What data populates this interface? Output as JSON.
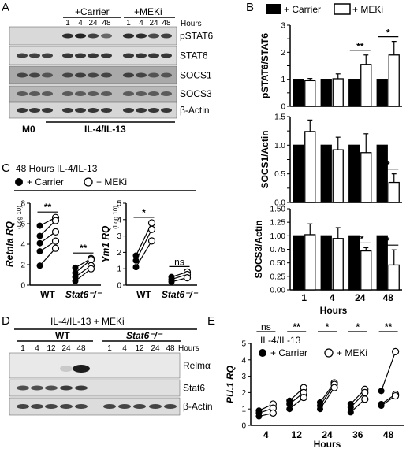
{
  "panels": {
    "A": {
      "letter": "A",
      "group_carrier": "+Carrier",
      "group_meki": "+MEKi",
      "lane_labels": [
        "1",
        "4",
        "24",
        "48",
        "1",
        "4",
        "24",
        "48"
      ],
      "hours_label": "Hours",
      "bands": [
        "pSTAT6",
        "STAT6",
        "SOCS1",
        "SOCS3",
        "β-Actin"
      ],
      "bottom_left": "M0",
      "bottom_right": "IL-4/IL-13"
    },
    "B": {
      "letter": "B",
      "legend_carrier": "+ Carrier",
      "legend_meki": "+ MEKi",
      "xlabel": "Hours",
      "categories": [
        "1",
        "4",
        "24",
        "48"
      ]
    },
    "C": {
      "letter": "C",
      "title": "48 Hours IL-4/IL-13",
      "legend_carrier": "+ Carrier",
      "legend_meki": "+ MEKi",
      "groups": [
        "WT",
        "Stat6⁻/⁻"
      ]
    },
    "D": {
      "letter": "D",
      "title": "IL-4/IL-13 + MEKi",
      "group_wt": "WT",
      "group_ko": "Stat6⁻/⁻",
      "lane_labels": [
        "1",
        "4",
        "12",
        "24",
        "48",
        "1",
        "4",
        "12",
        "24",
        "48"
      ],
      "hours_label": "Hours",
      "bands": [
        "Relmα",
        "Stat6",
        "β-Actin"
      ]
    },
    "E": {
      "letter": "E",
      "inner_title": "IL-4/IL-13",
      "legend_carrier": "+ Carrier",
      "legend_meki": "+ MEKi"
    }
  },
  "chart_data": [
    {
      "id": "B1",
      "type": "bar",
      "ylabel": "pSTAT6/STAT6",
      "categories": [
        "1",
        "4",
        "24",
        "48"
      ],
      "series": [
        {
          "name": "+ Carrier",
          "values": [
            1,
            1,
            1,
            1
          ],
          "errors": [
            0,
            0,
            0,
            0
          ]
        },
        {
          "name": "+ MEKi",
          "values": [
            0.95,
            1.02,
            1.55,
            1.9
          ],
          "errors": [
            0.08,
            0.18,
            0.35,
            0.5
          ]
        }
      ],
      "ylim": [
        0,
        3
      ],
      "yticks": [
        0,
        0.5,
        1,
        1.5,
        2,
        2.5,
        3
      ],
      "ytick_labels": [
        "0",
        "",
        "1",
        "",
        "2",
        "",
        "3"
      ],
      "significance": [
        {
          "category": "24",
          "label": "**"
        },
        {
          "category": "48",
          "label": "*"
        }
      ]
    },
    {
      "id": "B2",
      "type": "bar",
      "ylabel": "SOCS1/Actin",
      "categories": [
        "1",
        "4",
        "24",
        "48"
      ],
      "series": [
        {
          "name": "+ Carrier",
          "values": [
            1,
            1,
            1,
            1
          ],
          "errors": [
            0,
            0,
            0,
            0
          ]
        },
        {
          "name": "+ MEKi",
          "values": [
            1.24,
            0.92,
            0.87,
            0.35
          ],
          "errors": [
            0.2,
            0.22,
            0.33,
            0.15
          ]
        }
      ],
      "ylim": [
        0,
        1.5
      ],
      "yticks": [
        0,
        0.25,
        0.5,
        0.75,
        1,
        1.25,
        1.5
      ],
      "ytick_labels": [
        "0.0",
        "",
        "0.5",
        "",
        "1.0",
        "",
        "1.5"
      ],
      "significance": [
        {
          "category": "48",
          "label": "*"
        }
      ]
    },
    {
      "id": "B3",
      "type": "bar",
      "ylabel": "SOCS3/Actin",
      "categories": [
        "1",
        "4",
        "24",
        "48"
      ],
      "series": [
        {
          "name": "+ Carrier",
          "values": [
            1,
            1,
            1,
            1
          ],
          "errors": [
            0,
            0,
            0,
            0
          ]
        },
        {
          "name": "+ MEKi",
          "values": [
            1.02,
            0.95,
            0.72,
            0.46
          ],
          "errors": [
            0.2,
            0.2,
            0.06,
            0.28
          ]
        }
      ],
      "ylim": [
        0,
        1.5
      ],
      "yticks": [
        0,
        0.25,
        0.5,
        0.75,
        1,
        1.25,
        1.5
      ],
      "ytick_labels": [
        "0.00",
        "0.25",
        "0.50",
        "0.75",
        "1.00",
        "1.25",
        "1.50"
      ],
      "significance": [
        {
          "category": "24",
          "label": "**"
        },
        {
          "category": "48",
          "label": "*"
        }
      ]
    },
    {
      "id": "C1",
      "type": "scatter",
      "ylabel": "Retnla RQ",
      "ylabel_note": "(Log 10)",
      "categories": [
        "WT",
        "Stat6⁻/⁻"
      ],
      "ylim": [
        0,
        8
      ],
      "yticks": [
        0,
        2,
        4,
        6,
        8
      ],
      "pairs": [
        {
          "category": "WT",
          "carrier": [
            5.8,
            4.8,
            4.1,
            3.3,
            1.9
          ],
          "meki": [
            6.6,
            6.3,
            5.2,
            4.3,
            3.6
          ]
        },
        {
          "category": "Stat6⁻/⁻",
          "carrier": [
            1.7,
            1.2,
            0.8,
            0.4
          ],
          "meki": [
            2.6,
            2.5,
            1.9,
            1.6
          ]
        }
      ],
      "significance": [
        {
          "category": "WT",
          "label": "**"
        },
        {
          "category": "Stat6⁻/⁻",
          "label": "**"
        }
      ]
    },
    {
      "id": "C2",
      "type": "scatter",
      "ylabel": "Ym1 RQ",
      "ylabel_note": "(Log 10)",
      "categories": [
        "WT",
        "Stat6⁻/⁻"
      ],
      "ylim": [
        0,
        5
      ],
      "yticks": [
        0,
        1,
        2,
        3,
        4,
        5
      ],
      "pairs": [
        {
          "category": "WT",
          "carrier": [
            1.8,
            1.5,
            1.1
          ],
          "meki": [
            3.8,
            3.4,
            2.7
          ]
        },
        {
          "category": "Stat6⁻/⁻",
          "carrier": [
            0.5,
            0.35,
            0.2
          ],
          "meki": [
            0.8,
            0.65,
            0.45
          ]
        }
      ],
      "significance": [
        {
          "category": "WT",
          "label": "*"
        },
        {
          "category": "Stat6⁻/⁻",
          "label": "ns"
        }
      ]
    },
    {
      "id": "E",
      "type": "scatter",
      "ylabel": "PU.1 RQ",
      "xlabel": "Hours",
      "categories": [
        "4",
        "12",
        "24",
        "36",
        "48"
      ],
      "ylim": [
        0,
        5
      ],
      "yticks": [
        0,
        1,
        2,
        3,
        4,
        5
      ],
      "pairs": [
        {
          "category": "4",
          "carrier": [
            0.9,
            0.75,
            0.55
          ],
          "meki": [
            1.3,
            1.05,
            0.75
          ]
        },
        {
          "category": "12",
          "carrier": [
            1.5,
            1.3,
            1.0
          ],
          "meki": [
            2.3,
            2.0,
            1.7
          ]
        },
        {
          "category": "24",
          "carrier": [
            1.4,
            1.2,
            1.0
          ],
          "meki": [
            2.6,
            2.5,
            2.3
          ]
        },
        {
          "category": "36",
          "carrier": [
            1.3,
            1.1,
            0.8
          ],
          "meki": [
            2.2,
            2.0,
            1.6
          ]
        },
        {
          "category": "48",
          "carrier": [
            2.1,
            1.3,
            1.2
          ],
          "meki": [
            4.5,
            1.9,
            1.8
          ]
        }
      ],
      "significance": [
        {
          "category": "4",
          "label": "ns"
        },
        {
          "category": "12",
          "label": "**"
        },
        {
          "category": "24",
          "label": "*"
        },
        {
          "category": "36",
          "label": "*"
        },
        {
          "category": "48",
          "label": "**"
        }
      ]
    }
  ]
}
